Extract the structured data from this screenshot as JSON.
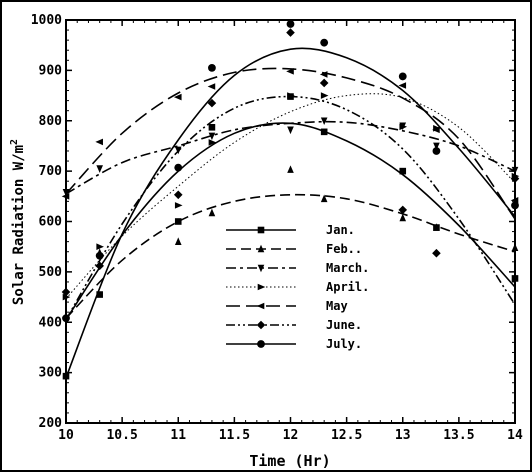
{
  "chart_data": {
    "type": "line",
    "title": "",
    "xlabel": "Time (Hr)",
    "ylabel": "Solar Radiation W/m",
    "ylabel_superscript": "2",
    "xlim": [
      10,
      14
    ],
    "ylim": [
      200,
      1000
    ],
    "xticks": [
      "10",
      "10.5",
      "11",
      "11.5",
      "12",
      "12.5",
      "13",
      "13.5",
      "14"
    ],
    "yticks": [
      "200",
      "300",
      "400",
      "500",
      "600",
      "700",
      "800",
      "900",
      "1000"
    ],
    "grid": false,
    "legend_position": "center",
    "series": [
      {
        "name": "Jan.",
        "marker": "square",
        "dash": "solid",
        "points": [
          [
            10,
            293
          ],
          [
            10.3,
            455
          ],
          [
            11,
            600
          ],
          [
            11.3,
            787
          ],
          [
            12,
            848
          ],
          [
            12.3,
            778
          ],
          [
            13,
            700
          ],
          [
            13.3,
            588
          ],
          [
            14,
            487
          ]
        ],
        "fit": [
          [
            10,
            405
          ],
          [
            10.5,
            573
          ],
          [
            11,
            700
          ],
          [
            11.5,
            775
          ],
          [
            12,
            795
          ],
          [
            12.5,
            760
          ],
          [
            13,
            693
          ],
          [
            13.5,
            592
          ],
          [
            14,
            470
          ]
        ]
      },
      {
        "name": "Feb..",
        "marker": "triangle-up",
        "dash": "dashed",
        "points": [
          [
            10,
            412
          ],
          [
            10.3,
            538
          ],
          [
            11,
            560
          ],
          [
            11.3,
            617
          ],
          [
            12,
            703
          ],
          [
            12.3,
            645
          ],
          [
            13,
            607
          ],
          [
            13.3,
            588
          ],
          [
            14,
            548
          ]
        ],
        "fit": [
          [
            10,
            408
          ],
          [
            10.5,
            523
          ],
          [
            11,
            600
          ],
          [
            11.5,
            640
          ],
          [
            12,
            653
          ],
          [
            12.5,
            645
          ],
          [
            13,
            615
          ],
          [
            13.5,
            575
          ],
          [
            14,
            540
          ]
        ]
      },
      {
        "name": "March.",
        "marker": "triangle-down",
        "dash": "dashdot",
        "points": [
          [
            10,
            658
          ],
          [
            10.3,
            705
          ],
          [
            11,
            742
          ],
          [
            11.3,
            770
          ],
          [
            12,
            782
          ],
          [
            12.3,
            800
          ],
          [
            13,
            790
          ],
          [
            13.3,
            750
          ],
          [
            14,
            702
          ]
        ],
        "fit": [
          [
            10,
            655
          ],
          [
            10.5,
            717
          ],
          [
            11,
            750
          ],
          [
            11.5,
            782
          ],
          [
            12,
            795
          ],
          [
            12.5,
            797
          ],
          [
            13,
            780
          ],
          [
            13.5,
            750
          ],
          [
            14,
            700
          ]
        ]
      },
      {
        "name": "April.",
        "marker": "triangle-right",
        "dash": "dotted",
        "points": [
          [
            10,
            450
          ],
          [
            10.3,
            550
          ],
          [
            11,
            632
          ],
          [
            11.3,
            757
          ],
          [
            12,
            850
          ],
          [
            12.3,
            850
          ],
          [
            13,
            788
          ],
          [
            13.3,
            785
          ],
          [
            14,
            690
          ]
        ],
        "fit": [
          [
            10,
            447
          ],
          [
            10.5,
            571
          ],
          [
            11,
            670
          ],
          [
            11.5,
            757
          ],
          [
            12,
            818
          ],
          [
            12.5,
            850
          ],
          [
            13,
            846
          ],
          [
            13.5,
            787
          ],
          [
            14,
            677
          ]
        ]
      },
      {
        "name": "May",
        "marker": "triangle-left",
        "dash": "longdash",
        "points": [
          [
            10,
            650
          ],
          [
            10.3,
            758
          ],
          [
            11,
            847
          ],
          [
            11.3,
            868
          ],
          [
            12,
            898
          ],
          [
            12.3,
            892
          ],
          [
            13,
            870
          ],
          [
            13.3,
            782
          ],
          [
            14,
            642
          ]
        ],
        "fit": [
          [
            10,
            655
          ],
          [
            10.5,
            775
          ],
          [
            11,
            855
          ],
          [
            11.5,
            896
          ],
          [
            12,
            903
          ],
          [
            12.5,
            885
          ],
          [
            13,
            845
          ],
          [
            13.5,
            764
          ],
          [
            14,
            605
          ]
        ]
      },
      {
        "name": "June.",
        "marker": "diamond",
        "dash": "dashdotdot",
        "points": [
          [
            10,
            460
          ],
          [
            10.3,
            512
          ],
          [
            11,
            653
          ],
          [
            11.3,
            835
          ],
          [
            12,
            975
          ],
          [
            12.3,
            875
          ],
          [
            13,
            623
          ],
          [
            13.3,
            537
          ],
          [
            14,
            685
          ]
        ],
        "fit": [
          [
            10,
            405
          ],
          [
            10.5,
            595
          ],
          [
            11,
            740
          ],
          [
            11.5,
            825
          ],
          [
            12,
            848
          ],
          [
            12.5,
            822
          ],
          [
            13,
            744
          ],
          [
            13.5,
            605
          ],
          [
            14,
            435
          ]
        ]
      },
      {
        "name": "July.",
        "marker": "circle",
        "dash": "solid",
        "points": [
          [
            10,
            408
          ],
          [
            10.3,
            532
          ],
          [
            11,
            707
          ],
          [
            11.3,
            905
          ],
          [
            12,
            992
          ],
          [
            12.3,
            955
          ],
          [
            13,
            888
          ],
          [
            13.3,
            740
          ],
          [
            14,
            632
          ]
        ],
        "fit": [
          [
            10,
            290
          ],
          [
            10.5,
            575
          ],
          [
            11,
            762
          ],
          [
            11.5,
            890
          ],
          [
            12,
            942
          ],
          [
            12.5,
            925
          ],
          [
            13,
            860
          ],
          [
            13.5,
            745
          ],
          [
            14,
            610
          ]
        ]
      }
    ]
  }
}
